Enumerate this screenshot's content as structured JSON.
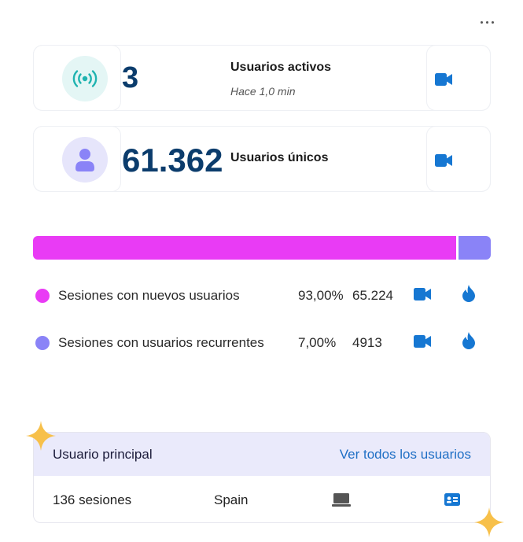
{
  "menu": {
    "icon": "more-horizontal-icon"
  },
  "active_users": {
    "value": "3",
    "title": "Usuarios activos",
    "subtitle": "Hace 1,0 min",
    "icon": "broadcast-icon",
    "action_icon": "video-icon"
  },
  "unique_users": {
    "value": "61.362",
    "title": "Usuarios únicos",
    "icon": "user-icon",
    "action_icon": "video-icon"
  },
  "sessions": {
    "split_bar": [
      {
        "name": "Sesiones con nuevos usuarios",
        "fraction": 0.93,
        "color": "#e93bf5"
      },
      {
        "name": "Sesiones con usuarios recurrentes",
        "fraction": 0.07,
        "color": "#8a83f7"
      }
    ],
    "rows": [
      {
        "label": "Sesiones con nuevos usuarios",
        "percent": "93,00%",
        "value": "65.224",
        "color": "#e93bf5",
        "icons": [
          "video-icon",
          "flame-icon"
        ]
      },
      {
        "label": "Sesiones con usuarios recurrentes",
        "percent": "7,00%",
        "value": "4913",
        "color": "#8a83f7",
        "icons": [
          "video-icon",
          "flame-icon"
        ]
      }
    ]
  },
  "top_user": {
    "title": "Usuario principal",
    "link": "Ver todos los usuarios",
    "sessions": "136 sesiones",
    "country": "Spain",
    "device_icon": "laptop-icon",
    "profile_icon": "id-card-icon"
  },
  "colors": {
    "accent_blue": "#1677d2",
    "dark_blue": "#0b3c6c",
    "sparkle": "#f7c04a"
  }
}
